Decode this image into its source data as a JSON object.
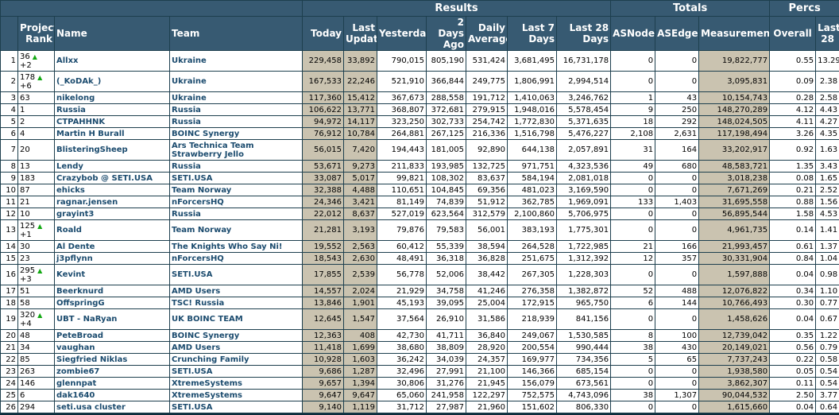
{
  "headers": {
    "groups": {
      "results": "Results",
      "totals": "Totals",
      "percs": "Percs"
    },
    "project_rank": "Project Rank",
    "name": "Name",
    "team": "Team",
    "today": "Today",
    "last_update": "Last Update",
    "yesterday": "Yesterday",
    "two_days_ago": "2 Days Ago",
    "daily_average": "Daily Average",
    "last7": "Last 7 Days",
    "last28": "Last 28 Days",
    "asnodes": "ASNodes",
    "asedges": "ASEdges",
    "measurements": "Measurements",
    "overall": "Overall",
    "last28pct": "Last 28"
  },
  "up_icon": "▲",
  "rows": [
    {
      "rank": "1",
      "pr": "36",
      "delta": "+2",
      "name": "Allxx",
      "team": "Ukraine",
      "team2": "",
      "today": "229,458",
      "last": "33,892",
      "yest": "790,015",
      "d2": "805,190",
      "avg": "531,424",
      "l7": "3,681,495",
      "l28": "16,731,178",
      "nodes": "0",
      "edges": "0",
      "meas": "19,822,777",
      "ov": "0.55",
      "p28": "13.29"
    },
    {
      "rank": "2",
      "pr": "178",
      "delta": "+6",
      "name": "(_KoDAk_)",
      "team": "Ukraine",
      "team2": "",
      "today": "167,533",
      "last": "22,246",
      "yest": "521,910",
      "d2": "366,844",
      "avg": "249,775",
      "l7": "1,806,991",
      "l28": "2,994,514",
      "nodes": "0",
      "edges": "0",
      "meas": "3,095,831",
      "ov": "0.09",
      "p28": "2.38"
    },
    {
      "rank": "3",
      "pr": "63",
      "delta": "",
      "name": "nikelong",
      "team": "Ukraine",
      "team2": "",
      "today": "117,360",
      "last": "15,412",
      "yest": "367,673",
      "d2": "288,558",
      "avg": "191,712",
      "l7": "1,410,063",
      "l28": "3,246,762",
      "nodes": "1",
      "edges": "43",
      "meas": "10,154,743",
      "ov": "0.28",
      "p28": "2.58"
    },
    {
      "rank": "4",
      "pr": "1",
      "delta": "",
      "name": "Russia",
      "team": "Russia",
      "team2": "",
      "today": "106,622",
      "last": "13,771",
      "yest": "368,807",
      "d2": "372,681",
      "avg": "279,915",
      "l7": "1,948,016",
      "l28": "5,578,454",
      "nodes": "9",
      "edges": "250",
      "meas": "148,270,289",
      "ov": "4.12",
      "p28": "4.43"
    },
    {
      "rank": "5",
      "pr": "2",
      "delta": "",
      "name": "CTPAHHNK",
      "team": "Russia",
      "team2": "",
      "today": "94,972",
      "last": "14,117",
      "yest": "323,250",
      "d2": "302,733",
      "avg": "254,742",
      "l7": "1,772,830",
      "l28": "5,371,635",
      "nodes": "18",
      "edges": "292",
      "meas": "148,024,505",
      "ov": "4.11",
      "p28": "4.27"
    },
    {
      "rank": "6",
      "pr": "4",
      "delta": "",
      "name": "Martin H Burall",
      "team": "BOINC Synergy",
      "team2": "",
      "today": "76,912",
      "last": "10,784",
      "yest": "264,881",
      "d2": "267,125",
      "avg": "216,336",
      "l7": "1,516,798",
      "l28": "5,476,227",
      "nodes": "2,108",
      "edges": "2,631",
      "meas": "117,198,494",
      "ov": "3.26",
      "p28": "4.35"
    },
    {
      "rank": "7",
      "pr": "20",
      "delta": "",
      "name": "BlisteringSheep",
      "team": "Ars Technica Team",
      "team2": "Strawberry Jello",
      "today": "56,015",
      "last": "7,420",
      "yest": "194,443",
      "d2": "181,005",
      "avg": "92,890",
      "l7": "644,138",
      "l28": "2,057,891",
      "nodes": "31",
      "edges": "164",
      "meas": "33,202,917",
      "ov": "0.92",
      "p28": "1.63"
    },
    {
      "rank": "8",
      "pr": "13",
      "delta": "",
      "name": "Lendy",
      "team": "Russia",
      "team2": "",
      "today": "53,671",
      "last": "9,273",
      "yest": "211,833",
      "d2": "193,985",
      "avg": "132,725",
      "l7": "971,751",
      "l28": "4,323,536",
      "nodes": "49",
      "edges": "680",
      "meas": "48,583,721",
      "ov": "1.35",
      "p28": "3.43"
    },
    {
      "rank": "9",
      "pr": "183",
      "delta": "",
      "name": "Crazybob @ SETI.USA",
      "team": "SETI.USA",
      "team2": "",
      "today": "33,087",
      "last": "5,017",
      "yest": "99,821",
      "d2": "108,302",
      "avg": "83,637",
      "l7": "584,194",
      "l28": "2,081,018",
      "nodes": "0",
      "edges": "0",
      "meas": "3,018,238",
      "ov": "0.08",
      "p28": "1.65"
    },
    {
      "rank": "10",
      "pr": "87",
      "delta": "",
      "name": "ehicks",
      "team": "Team Norway",
      "team2": "",
      "today": "32,388",
      "last": "4,488",
      "yest": "110,651",
      "d2": "104,845",
      "avg": "69,356",
      "l7": "481,023",
      "l28": "3,169,590",
      "nodes": "0",
      "edges": "0",
      "meas": "7,671,269",
      "ov": "0.21",
      "p28": "2.52"
    },
    {
      "rank": "11",
      "pr": "21",
      "delta": "",
      "name": "ragnar.jensen",
      "team": "nForcersHQ",
      "team2": "",
      "today": "24,346",
      "last": "3,421",
      "yest": "81,149",
      "d2": "74,839",
      "avg": "51,912",
      "l7": "362,785",
      "l28": "1,969,091",
      "nodes": "133",
      "edges": "1,403",
      "meas": "31,695,558",
      "ov": "0.88",
      "p28": "1.56"
    },
    {
      "rank": "12",
      "pr": "10",
      "delta": "",
      "name": "grayint3",
      "team": "Russia",
      "team2": "",
      "today": "22,012",
      "last": "8,637",
      "yest": "527,019",
      "d2": "623,564",
      "avg": "312,579",
      "l7": "2,100,860",
      "l28": "5,706,975",
      "nodes": "0",
      "edges": "0",
      "meas": "56,895,544",
      "ov": "1.58",
      "p28": "4.53"
    },
    {
      "rank": "13",
      "pr": "125",
      "delta": "+1",
      "name": "Roald",
      "team": "Team Norway",
      "team2": "",
      "today": "21,281",
      "last": "3,193",
      "yest": "79,876",
      "d2": "79,583",
      "avg": "56,001",
      "l7": "383,193",
      "l28": "1,775,301",
      "nodes": "0",
      "edges": "0",
      "meas": "4,961,735",
      "ov": "0.14",
      "p28": "1.41"
    },
    {
      "rank": "14",
      "pr": "30",
      "delta": "",
      "name": "Al Dente",
      "team": "The Knights Who Say Ni!",
      "team2": "",
      "today": "19,552",
      "last": "2,563",
      "yest": "60,412",
      "d2": "55,339",
      "avg": "38,594",
      "l7": "264,528",
      "l28": "1,722,985",
      "nodes": "21",
      "edges": "166",
      "meas": "21,993,457",
      "ov": "0.61",
      "p28": "1.37"
    },
    {
      "rank": "15",
      "pr": "23",
      "delta": "",
      "name": "j3pflynn",
      "team": "nForcersHQ",
      "team2": "",
      "today": "18,543",
      "last": "2,630",
      "yest": "48,491",
      "d2": "36,318",
      "avg": "36,828",
      "l7": "251,675",
      "l28": "1,312,392",
      "nodes": "12",
      "edges": "357",
      "meas": "30,331,904",
      "ov": "0.84",
      "p28": "1.04"
    },
    {
      "rank": "16",
      "pr": "295",
      "delta": "+3",
      "name": "Kevint",
      "team": "SETI.USA",
      "team2": "",
      "today": "17,855",
      "last": "2,539",
      "yest": "56,778",
      "d2": "52,006",
      "avg": "38,442",
      "l7": "267,305",
      "l28": "1,228,303",
      "nodes": "0",
      "edges": "0",
      "meas": "1,597,888",
      "ov": "0.04",
      "p28": "0.98"
    },
    {
      "rank": "17",
      "pr": "51",
      "delta": "",
      "name": "Beerknurd",
      "team": "AMD Users",
      "team2": "",
      "today": "14,557",
      "last": "2,024",
      "yest": "21,929",
      "d2": "34,758",
      "avg": "41,246",
      "l7": "276,358",
      "l28": "1,382,872",
      "nodes": "52",
      "edges": "488",
      "meas": "12,076,822",
      "ov": "0.34",
      "p28": "1.10"
    },
    {
      "rank": "18",
      "pr": "58",
      "delta": "",
      "name": "OffspringG",
      "team": "TSC! Russia",
      "team2": "",
      "today": "13,846",
      "last": "1,901",
      "yest": "45,193",
      "d2": "39,095",
      "avg": "25,004",
      "l7": "172,915",
      "l28": "965,750",
      "nodes": "6",
      "edges": "144",
      "meas": "10,766,493",
      "ov": "0.30",
      "p28": "0.77"
    },
    {
      "rank": "19",
      "pr": "320",
      "delta": "+4",
      "name": "UBT - NaRyan",
      "team": "UK BOINC TEAM",
      "team2": "",
      "today": "12,645",
      "last": "1,547",
      "yest": "37,564",
      "d2": "26,910",
      "avg": "31,586",
      "l7": "218,939",
      "l28": "841,156",
      "nodes": "0",
      "edges": "0",
      "meas": "1,458,626",
      "ov": "0.04",
      "p28": "0.67"
    },
    {
      "rank": "20",
      "pr": "48",
      "delta": "",
      "name": "PeteBroad",
      "team": "BOINC Synergy",
      "team2": "",
      "today": "12,363",
      "last": "408",
      "yest": "42,730",
      "d2": "41,711",
      "avg": "36,840",
      "l7": "249,067",
      "l28": "1,530,585",
      "nodes": "8",
      "edges": "100",
      "meas": "12,739,042",
      "ov": "0.35",
      "p28": "1.22"
    },
    {
      "rank": "21",
      "pr": "34",
      "delta": "",
      "name": "vaughan",
      "team": "AMD Users",
      "team2": "",
      "today": "11,418",
      "last": "1,699",
      "yest": "38,680",
      "d2": "38,809",
      "avg": "28,920",
      "l7": "200,554",
      "l28": "990,444",
      "nodes": "38",
      "edges": "430",
      "meas": "20,149,021",
      "ov": "0.56",
      "p28": "0.79"
    },
    {
      "rank": "22",
      "pr": "85",
      "delta": "",
      "name": "Siegfried Niklas",
      "team": "Crunching Family",
      "team2": "",
      "today": "10,928",
      "last": "1,603",
      "yest": "36,242",
      "d2": "34,039",
      "avg": "24,357",
      "l7": "169,977",
      "l28": "734,356",
      "nodes": "5",
      "edges": "65",
      "meas": "7,737,243",
      "ov": "0.22",
      "p28": "0.58"
    },
    {
      "rank": "23",
      "pr": "263",
      "delta": "",
      "name": "zombie67",
      "team": "SETI.USA",
      "team2": "",
      "today": "9,686",
      "last": "1,287",
      "yest": "32,496",
      "d2": "27,991",
      "avg": "21,100",
      "l7": "146,366",
      "l28": "685,154",
      "nodes": "0",
      "edges": "0",
      "meas": "1,938,580",
      "ov": "0.05",
      "p28": "0.54"
    },
    {
      "rank": "24",
      "pr": "146",
      "delta": "",
      "name": "glennpat",
      "team": "XtremeSystems",
      "team2": "",
      "today": "9,657",
      "last": "1,394",
      "yest": "30,806",
      "d2": "31,276",
      "avg": "21,945",
      "l7": "156,079",
      "l28": "673,561",
      "nodes": "0",
      "edges": "0",
      "meas": "3,862,307",
      "ov": "0.11",
      "p28": "0.54"
    },
    {
      "rank": "25",
      "pr": "6",
      "delta": "",
      "name": "dak1640",
      "team": "XtremeSystems",
      "team2": "",
      "today": "9,647",
      "last": "9,647",
      "yest": "65,060",
      "d2": "241,958",
      "avg": "122,297",
      "l7": "752,575",
      "l28": "4,743,096",
      "nodes": "38",
      "edges": "1,307",
      "meas": "90,044,532",
      "ov": "2.50",
      "p28": "3.77"
    },
    {
      "rank": "26",
      "pr": "294",
      "delta": "",
      "name": "seti.usa cluster",
      "team": "SETI.USA",
      "team2": "",
      "today": "9,140",
      "last": "1,119",
      "yest": "31,712",
      "d2": "27,987",
      "avg": "21,960",
      "l7": "151,602",
      "l28": "806,330",
      "nodes": "0",
      "edges": "0",
      "meas": "1,615,660",
      "ov": "0.04",
      "p28": "0.64"
    }
  ]
}
